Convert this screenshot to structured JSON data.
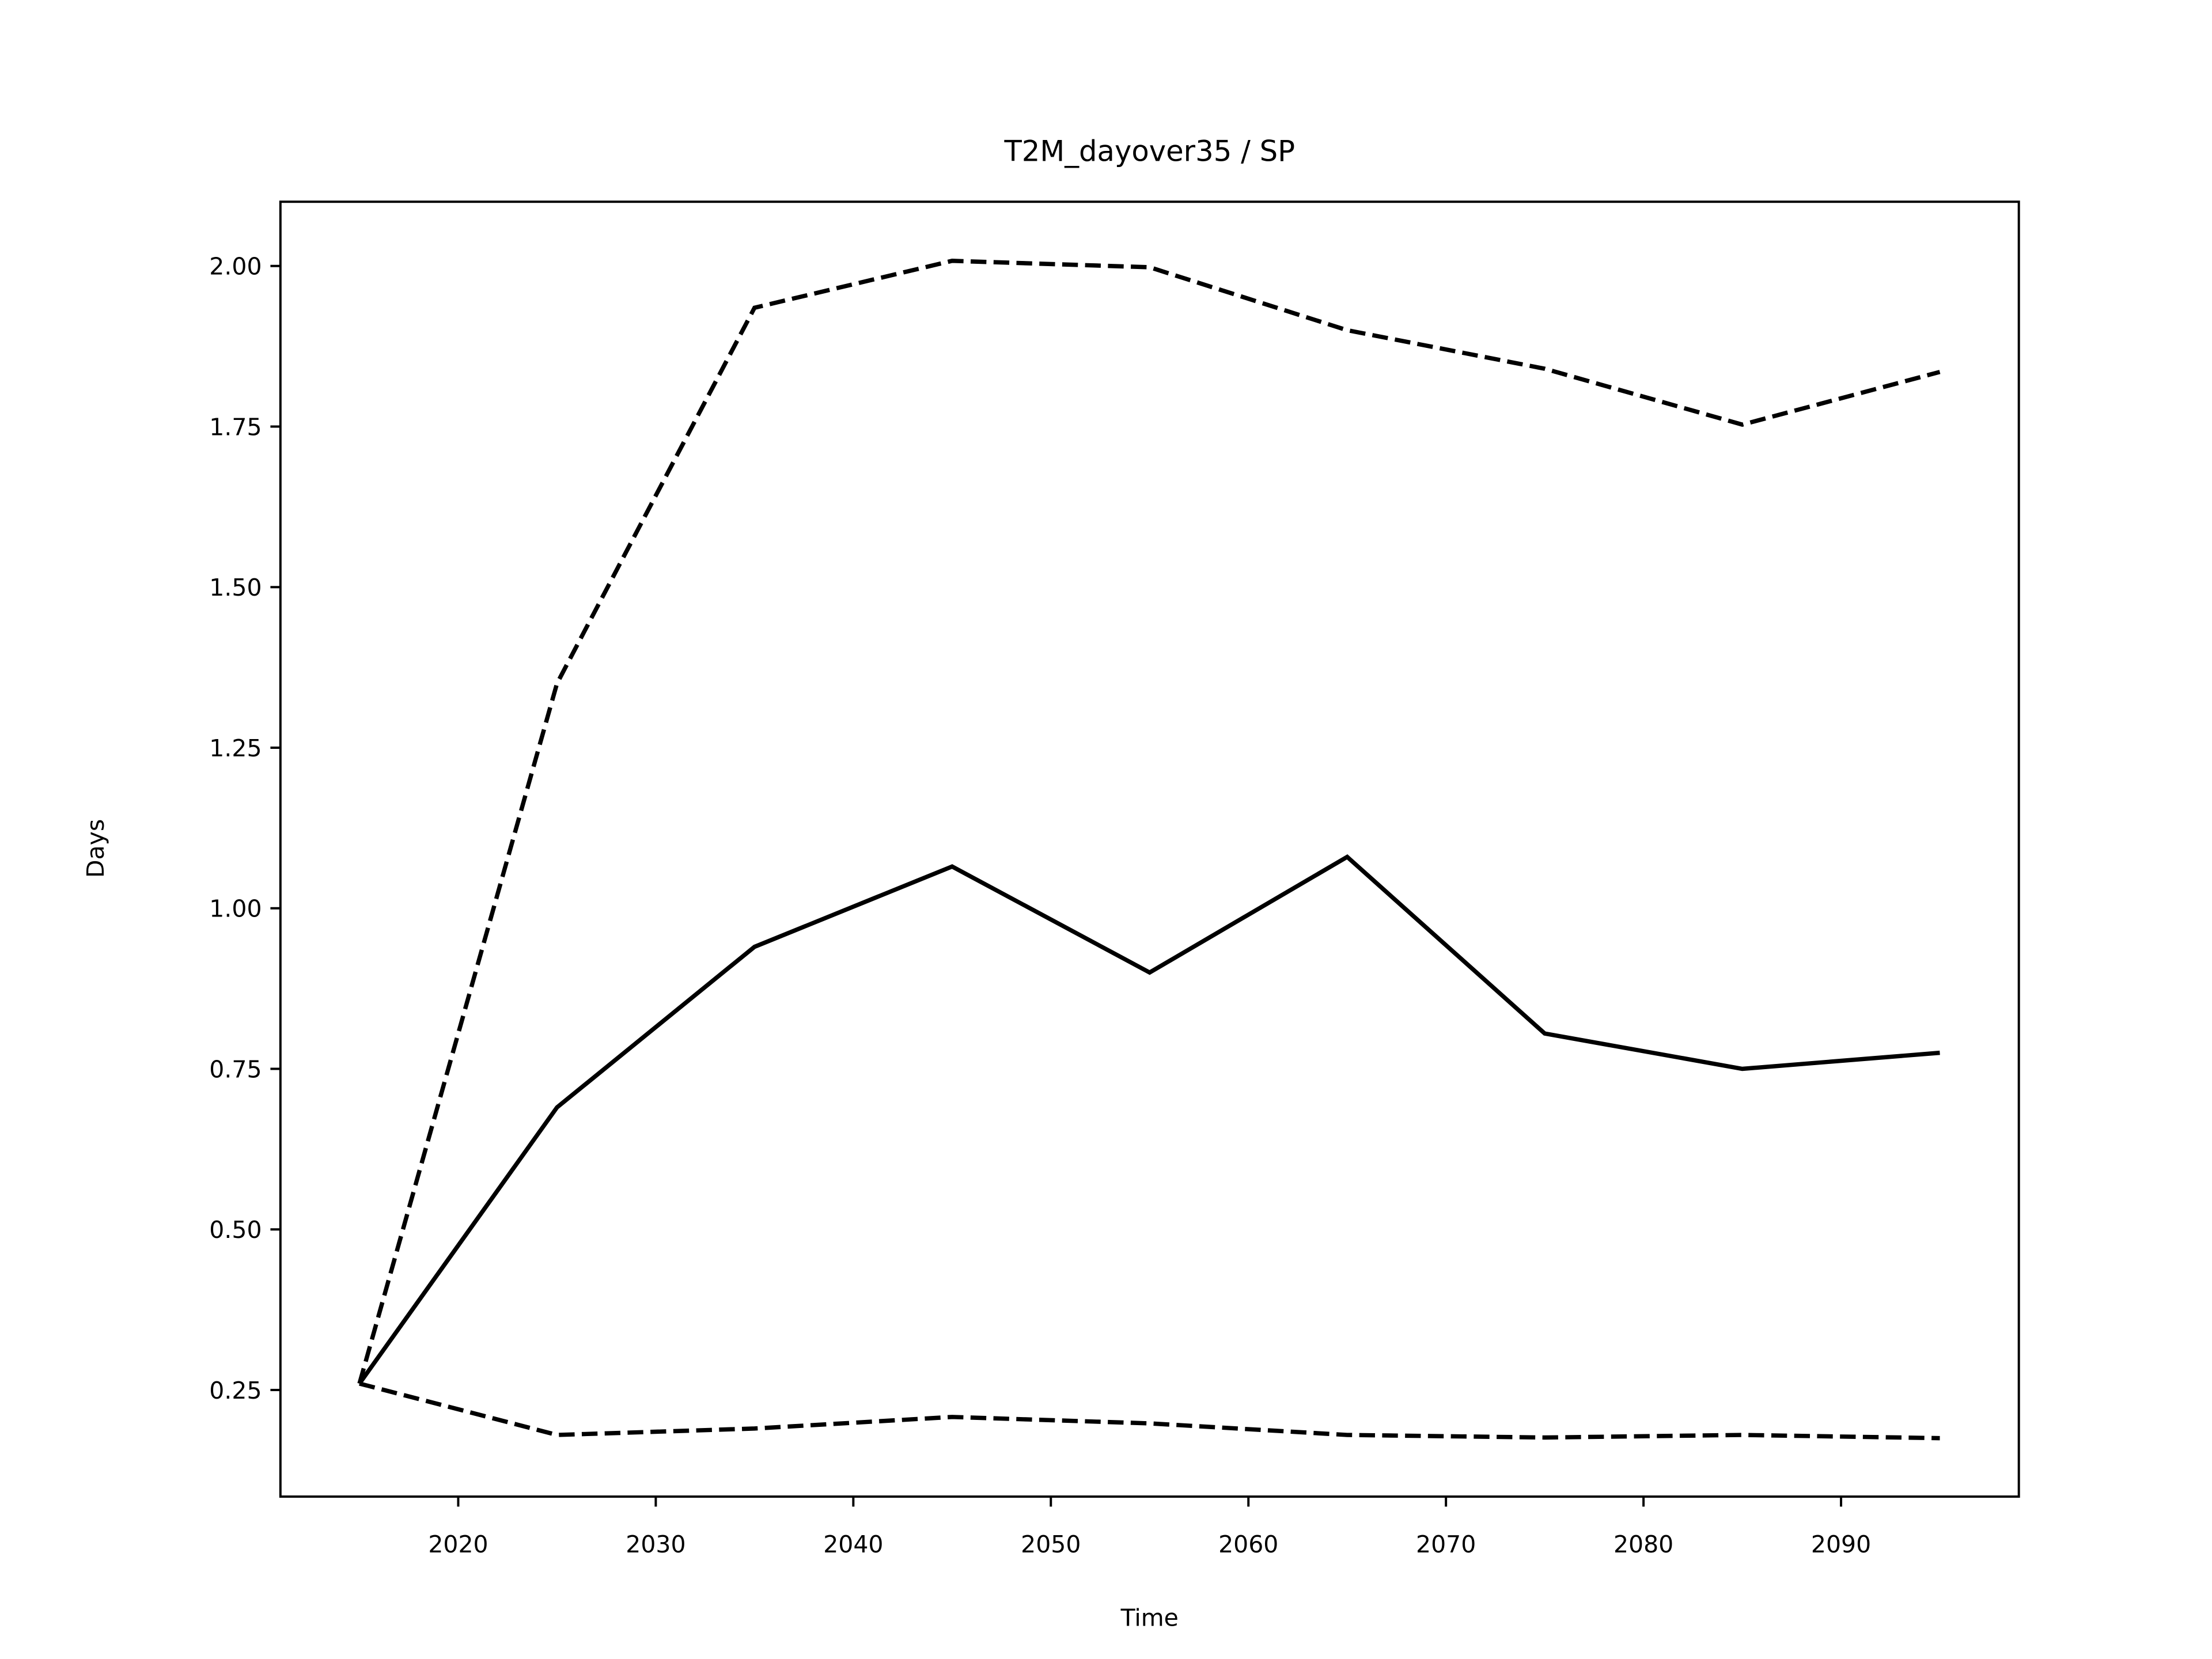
{
  "chart_data": {
    "type": "line",
    "title": "T2M_dayover35 / SP",
    "x_label": "Time",
    "y_label": "Days",
    "x": [
      2015,
      2025,
      2035,
      2045,
      2055,
      2065,
      2075,
      2085,
      2095
    ],
    "series": [
      {
        "color": "#000000",
        "linestyle": "solid",
        "values": [
          0.26,
          0.69,
          0.94,
          1.065,
          0.9,
          1.08,
          0.805,
          0.75,
          0.775
        ]
      },
      {
        "color": "#000000",
        "linestyle": "dashed",
        "values": [
          0.26,
          1.35,
          1.935,
          2.008,
          1.998,
          1.9,
          1.84,
          1.753,
          1.835
        ]
      },
      {
        "color": "#000000",
        "linestyle": "dashed",
        "values": [
          0.26,
          0.18,
          0.19,
          0.208,
          0.198,
          0.18,
          0.176,
          0.18,
          0.175
        ]
      }
    ],
    "xlim": [
      2011,
      2099
    ],
    "xticks": [
      2020,
      2030,
      2040,
      2050,
      2060,
      2070,
      2080,
      2090
    ],
    "ylim": [
      0.084,
      2.1
    ],
    "yticks": [
      {
        "value": 0.25,
        "label": "0.25"
      },
      {
        "value": 0.5,
        "label": "0.50"
      },
      {
        "value": 0.75,
        "label": "0.75"
      },
      {
        "value": 1,
        "label": "1.00"
      },
      {
        "value": 1.25,
        "label": "1.25"
      },
      {
        "value": 1.5,
        "label": "1.50"
      },
      {
        "value": 1.75,
        "label": "1.75"
      },
      {
        "value": 2,
        "label": "2.00"
      }
    ],
    "grid": false
  }
}
